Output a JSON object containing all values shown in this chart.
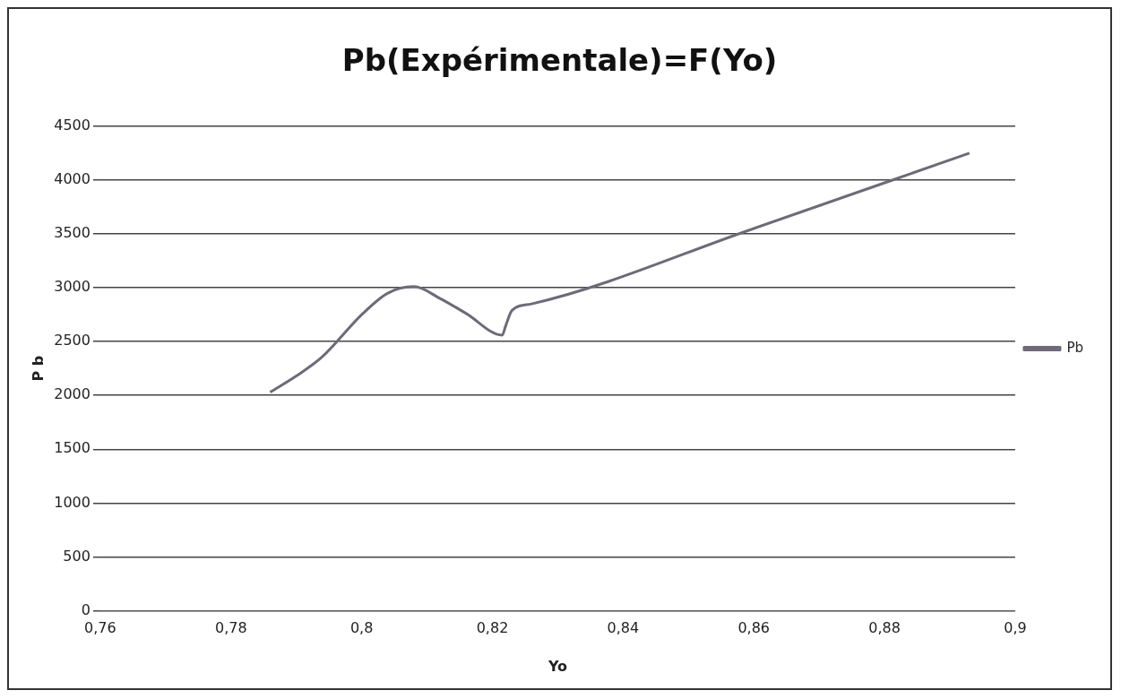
{
  "chart_data": {
    "type": "line",
    "title": "Pb(Expérimentale)=F(Yo)",
    "xlabel": "Yo",
    "ylabel": "P b",
    "x": [
      0.786,
      0.79,
      0.794,
      0.8,
      0.804,
      0.808,
      0.812,
      0.816,
      0.8215,
      0.822,
      0.823,
      0.826,
      0.86,
      0.893
    ],
    "series": [
      {
        "name": "Pb",
        "color": "#6e6a78",
        "values": [
          2030,
          2180,
          2360,
          2750,
          2950,
          3010,
          2900,
          2760,
          2560,
          2640,
          2790,
          2850,
          3550,
          4250
        ]
      }
    ],
    "xlim": [
      0.76,
      0.9
    ],
    "xticks": [
      {
        "value": 0.76,
        "label": "0,76"
      },
      {
        "value": 0.78,
        "label": "0,78"
      },
      {
        "value": 0.8,
        "label": "0,8"
      },
      {
        "value": 0.82,
        "label": "0,82"
      },
      {
        "value": 0.84,
        "label": "0,84"
      },
      {
        "value": 0.86,
        "label": "0,86"
      },
      {
        "value": 0.88,
        "label": "0,88"
      },
      {
        "value": 0.9,
        "label": "0,9"
      }
    ],
    "ylim": [
      0,
      4500
    ],
    "yticks": [
      0,
      500,
      1000,
      1500,
      2000,
      2500,
      3000,
      3500,
      4000,
      4500
    ],
    "grid": "y",
    "legend": "right",
    "marker": "none",
    "line_style": "solid"
  }
}
